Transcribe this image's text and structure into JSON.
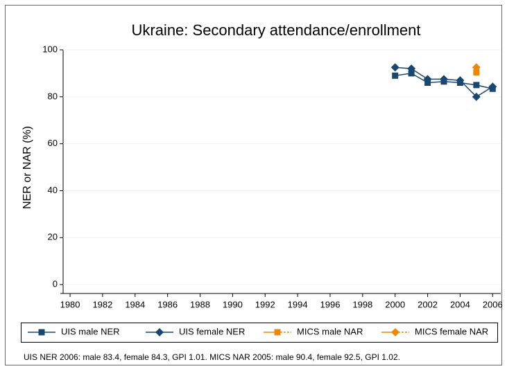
{
  "chart_data": {
    "type": "line",
    "title": "Ukraine: Secondary attendance/enrollment",
    "ylabel": "NER or NAR (%)",
    "x": [
      2000,
      2001,
      2002,
      2003,
      2004,
      2005,
      2006
    ],
    "series": [
      {
        "name": "UIS male NER",
        "color": "#1a476f",
        "marker": "square",
        "line": "solid",
        "values": [
          89,
          90,
          86,
          86.5,
          86,
          85,
          83.4
        ]
      },
      {
        "name": "UIS female NER",
        "color": "#1a476f",
        "marker": "diamond",
        "line": "solid",
        "values": [
          92.5,
          92,
          87.5,
          87.5,
          87,
          80,
          84.3
        ]
      },
      {
        "name": "MICS male NAR",
        "color": "#e8890c",
        "marker": "square",
        "line": "dotted",
        "values": [
          null,
          null,
          null,
          null,
          null,
          90.4,
          null
        ]
      },
      {
        "name": "MICS female NAR",
        "color": "#e8890c",
        "marker": "diamond",
        "line": "dotted",
        "values": [
          null,
          null,
          null,
          null,
          null,
          92.5,
          null
        ]
      }
    ],
    "xlim": [
      1979.4,
      2006.5
    ],
    "xticks": [
      1980,
      1982,
      1984,
      1986,
      1988,
      1990,
      1992,
      1994,
      1996,
      1998,
      2000,
      2002,
      2004,
      2006
    ],
    "ylim": [
      -3.8,
      100
    ],
    "yticks": [
      0,
      20,
      40,
      60,
      80,
      100
    ],
    "grid": true,
    "legend": "bottom",
    "note": "UIS NER 2006: male 83.4, female 84.3, GPI 1.01. MICS NAR 2005: male 90.4, female 92.5, GPI 1.02."
  }
}
